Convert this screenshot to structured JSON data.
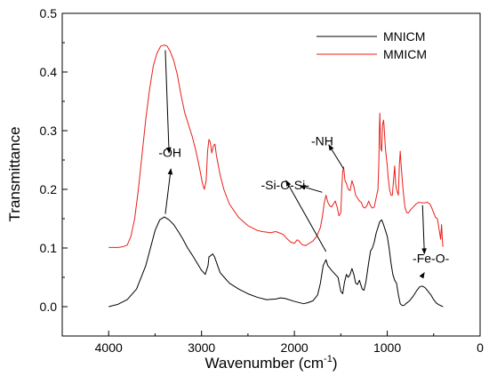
{
  "chart_data": {
    "type": "line",
    "title": "",
    "xlabel": "Wavenumber (cm",
    "xlabel_sup": "-1",
    "xlabel_close": ")",
    "ylabel": "Transmittance",
    "xlim": [
      4500,
      0
    ],
    "ylim": [
      -0.05,
      0.5
    ],
    "x_reversed": true,
    "x_ticks": [
      4000,
      3000,
      2000,
      1000,
      0
    ],
    "y_ticks": [
      0.0,
      0.1,
      0.2,
      0.3,
      0.4,
      0.5
    ],
    "x_tick_labels": [
      "4000",
      "3000",
      "2000",
      "1000",
      "0"
    ],
    "y_tick_labels": [
      "0.0",
      "0.1",
      "0.2",
      "0.3",
      "0.4",
      "0.5"
    ],
    "grid": false,
    "legend_position": "top-right",
    "series": [
      {
        "name": "MNICM",
        "color": "#000000",
        "points": [
          [
            4000,
            0.0
          ],
          [
            3900,
            0.004
          ],
          [
            3800,
            0.012
          ],
          [
            3700,
            0.03
          ],
          [
            3600,
            0.07
          ],
          [
            3550,
            0.1
          ],
          [
            3500,
            0.13
          ],
          [
            3450,
            0.148
          ],
          [
            3400,
            0.153
          ],
          [
            3350,
            0.148
          ],
          [
            3300,
            0.14
          ],
          [
            3250,
            0.128
          ],
          [
            3200,
            0.115
          ],
          [
            3150,
            0.1
          ],
          [
            3100,
            0.088
          ],
          [
            3050,
            0.075
          ],
          [
            3000,
            0.062
          ],
          [
            2960,
            0.055
          ],
          [
            2930,
            0.07
          ],
          [
            2920,
            0.085
          ],
          [
            2900,
            0.087
          ],
          [
            2880,
            0.09
          ],
          [
            2860,
            0.085
          ],
          [
            2840,
            0.076
          ],
          [
            2800,
            0.058
          ],
          [
            2700,
            0.04
          ],
          [
            2600,
            0.03
          ],
          [
            2500,
            0.022
          ],
          [
            2400,
            0.016
          ],
          [
            2300,
            0.012
          ],
          [
            2200,
            0.013
          ],
          [
            2150,
            0.015
          ],
          [
            2100,
            0.014
          ],
          [
            2000,
            0.009
          ],
          [
            1900,
            0.005
          ],
          [
            1850,
            0.007
          ],
          [
            1800,
            0.01
          ],
          [
            1750,
            0.02
          ],
          [
            1720,
            0.04
          ],
          [
            1690,
            0.07
          ],
          [
            1660,
            0.08
          ],
          [
            1640,
            0.07
          ],
          [
            1600,
            0.062
          ],
          [
            1560,
            0.055
          ],
          [
            1530,
            0.05
          ],
          [
            1500,
            0.026
          ],
          [
            1480,
            0.022
          ],
          [
            1460,
            0.042
          ],
          [
            1440,
            0.055
          ],
          [
            1420,
            0.05
          ],
          [
            1400,
            0.055
          ],
          [
            1380,
            0.065
          ],
          [
            1360,
            0.055
          ],
          [
            1340,
            0.04
          ],
          [
            1320,
            0.038
          ],
          [
            1300,
            0.045
          ],
          [
            1270,
            0.03
          ],
          [
            1250,
            0.028
          ],
          [
            1230,
            0.042
          ],
          [
            1200,
            0.075
          ],
          [
            1180,
            0.095
          ],
          [
            1160,
            0.1
          ],
          [
            1140,
            0.11
          ],
          [
            1120,
            0.125
          ],
          [
            1100,
            0.135
          ],
          [
            1080,
            0.145
          ],
          [
            1060,
            0.148
          ],
          [
            1040,
            0.14
          ],
          [
            1020,
            0.13
          ],
          [
            1000,
            0.12
          ],
          [
            980,
            0.1
          ],
          [
            960,
            0.075
          ],
          [
            940,
            0.055
          ],
          [
            920,
            0.045
          ],
          [
            900,
            0.04
          ],
          [
            880,
            0.02
          ],
          [
            860,
            0.005
          ],
          [
            840,
            0.002
          ],
          [
            820,
            0.002
          ],
          [
            800,
            0.005
          ],
          [
            760,
            0.01
          ],
          [
            720,
            0.018
          ],
          [
            680,
            0.028
          ],
          [
            650,
            0.034
          ],
          [
            620,
            0.035
          ],
          [
            590,
            0.032
          ],
          [
            560,
            0.026
          ],
          [
            530,
            0.02
          ],
          [
            500,
            0.012
          ],
          [
            470,
            0.006
          ],
          [
            440,
            0.003
          ],
          [
            400,
            0.0
          ]
        ]
      },
      {
        "name": "MMICM",
        "color": "#e8201a",
        "points": [
          [
            4000,
            0.101
          ],
          [
            3900,
            0.101
          ],
          [
            3850,
            0.102
          ],
          [
            3800,
            0.105
          ],
          [
            3760,
            0.12
          ],
          [
            3720,
            0.15
          ],
          [
            3680,
            0.2
          ],
          [
            3640,
            0.26
          ],
          [
            3600,
            0.32
          ],
          [
            3560,
            0.37
          ],
          [
            3520,
            0.41
          ],
          [
            3480,
            0.432
          ],
          [
            3440,
            0.444
          ],
          [
            3400,
            0.446
          ],
          [
            3370,
            0.444
          ],
          [
            3340,
            0.436
          ],
          [
            3300,
            0.42
          ],
          [
            3260,
            0.395
          ],
          [
            3220,
            0.36
          ],
          [
            3180,
            0.33
          ],
          [
            3140,
            0.31
          ],
          [
            3100,
            0.29
          ],
          [
            3060,
            0.265
          ],
          [
            3020,
            0.235
          ],
          [
            2990,
            0.21
          ],
          [
            2970,
            0.2
          ],
          [
            2950,
            0.215
          ],
          [
            2935,
            0.265
          ],
          [
            2920,
            0.285
          ],
          [
            2905,
            0.28
          ],
          [
            2890,
            0.262
          ],
          [
            2870,
            0.275
          ],
          [
            2855,
            0.277
          ],
          [
            2840,
            0.258
          ],
          [
            2800,
            0.225
          ],
          [
            2760,
            0.2
          ],
          [
            2700,
            0.175
          ],
          [
            2600,
            0.152
          ],
          [
            2500,
            0.138
          ],
          [
            2400,
            0.13
          ],
          [
            2350,
            0.128
          ],
          [
            2300,
            0.127
          ],
          [
            2260,
            0.126
          ],
          [
            2200,
            0.128
          ],
          [
            2150,
            0.125
          ],
          [
            2120,
            0.123
          ],
          [
            2080,
            0.116
          ],
          [
            2040,
            0.11
          ],
          [
            2000,
            0.108
          ],
          [
            1970,
            0.114
          ],
          [
            1950,
            0.112
          ],
          [
            1920,
            0.106
          ],
          [
            1880,
            0.104
          ],
          [
            1850,
            0.107
          ],
          [
            1800,
            0.112
          ],
          [
            1760,
            0.12
          ],
          [
            1720,
            0.135
          ],
          [
            1700,
            0.152
          ],
          [
            1680,
            0.175
          ],
          [
            1660,
            0.19
          ],
          [
            1640,
            0.178
          ],
          [
            1620,
            0.172
          ],
          [
            1600,
            0.17
          ],
          [
            1580,
            0.175
          ],
          [
            1560,
            0.18
          ],
          [
            1540,
            0.17
          ],
          [
            1520,
            0.155
          ],
          [
            1500,
            0.16
          ],
          [
            1490,
            0.2
          ],
          [
            1480,
            0.23
          ],
          [
            1470,
            0.238
          ],
          [
            1455,
            0.215
          ],
          [
            1440,
            0.21
          ],
          [
            1420,
            0.2
          ],
          [
            1400,
            0.198
          ],
          [
            1380,
            0.215
          ],
          [
            1360,
            0.205
          ],
          [
            1340,
            0.19
          ],
          [
            1320,
            0.185
          ],
          [
            1300,
            0.18
          ],
          [
            1280,
            0.178
          ],
          [
            1260,
            0.17
          ],
          [
            1240,
            0.168
          ],
          [
            1220,
            0.172
          ],
          [
            1200,
            0.18
          ],
          [
            1180,
            0.172
          ],
          [
            1160,
            0.168
          ],
          [
            1140,
            0.17
          ],
          [
            1120,
            0.185
          ],
          [
            1100,
            0.2
          ],
          [
            1090,
            0.25
          ],
          [
            1085,
            0.3
          ],
          [
            1080,
            0.33
          ],
          [
            1075,
            0.3
          ],
          [
            1070,
            0.27
          ],
          [
            1060,
            0.265
          ],
          [
            1050,
            0.31
          ],
          [
            1040,
            0.318
          ],
          [
            1035,
            0.31
          ],
          [
            1020,
            0.27
          ],
          [
            1000,
            0.24
          ],
          [
            990,
            0.22
          ],
          [
            975,
            0.2
          ],
          [
            960,
            0.19
          ],
          [
            945,
            0.19
          ],
          [
            930,
            0.22
          ],
          [
            920,
            0.24
          ],
          [
            910,
            0.21
          ],
          [
            900,
            0.2
          ],
          [
            880,
            0.19
          ],
          [
            870,
            0.24
          ],
          [
            860,
            0.265
          ],
          [
            850,
            0.24
          ],
          [
            830,
            0.2
          ],
          [
            810,
            0.17
          ],
          [
            790,
            0.16
          ],
          [
            770,
            0.16
          ],
          [
            750,
            0.165
          ],
          [
            720,
            0.17
          ],
          [
            690,
            0.175
          ],
          [
            660,
            0.178
          ],
          [
            630,
            0.177
          ],
          [
            600,
            0.177
          ],
          [
            570,
            0.178
          ],
          [
            540,
            0.175
          ],
          [
            520,
            0.168
          ],
          [
            500,
            0.16
          ],
          [
            480,
            0.152
          ],
          [
            460,
            0.15
          ],
          [
            440,
            0.13
          ],
          [
            425,
            0.115
          ],
          [
            415,
            0.14
          ],
          [
            405,
            0.11
          ],
          [
            400,
            0.102
          ]
        ]
      }
    ],
    "annotations": [
      {
        "text": "-OH",
        "label_at": [
          3340,
          0.255
        ]
      },
      {
        "text": "-Si-O-Si-",
        "label_at": [
          2100,
          0.2
        ]
      },
      {
        "text": "-NH",
        "label_at": [
          1700,
          0.275
        ]
      },
      {
        "text": "-Fe-O-",
        "label_at": [
          530,
          0.075
        ]
      }
    ]
  }
}
